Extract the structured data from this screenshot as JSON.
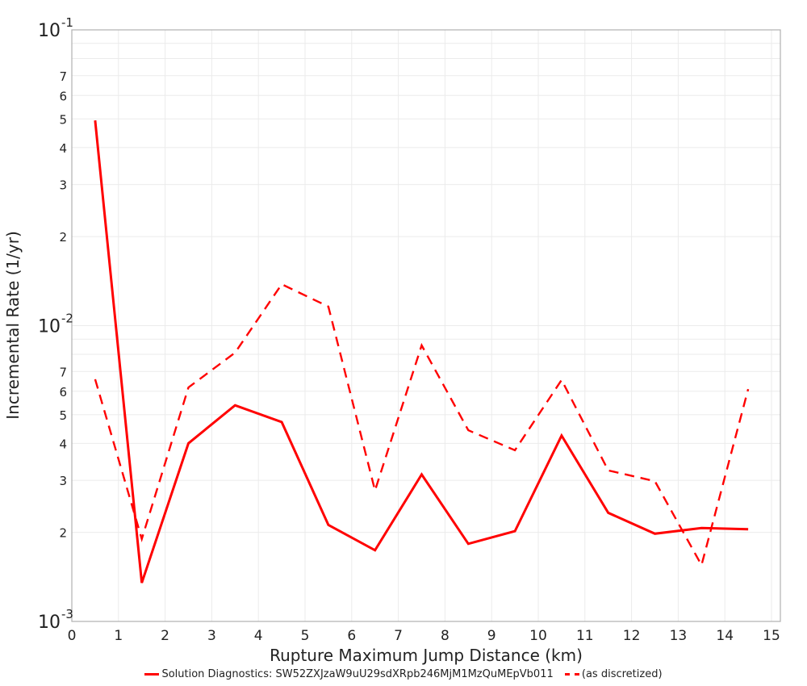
{
  "chart_data": {
    "type": "line",
    "title": "",
    "xlabel": "Rupture Maximum Jump Distance (km)",
    "ylabel": "Incremental Rate (1/yr)",
    "xlim": [
      0,
      15
    ],
    "ylim": [
      0.001,
      0.1
    ],
    "yscale": "log",
    "grid": true,
    "legend_position": "bottom",
    "x_ticks": [
      "0",
      "1",
      "2",
      "3",
      "4",
      "5",
      "6",
      "7",
      "8",
      "9",
      "10",
      "11",
      "12",
      "13",
      "14",
      "15"
    ],
    "y_major_ticks": [
      {
        "base": "10",
        "exp": "-1",
        "value": 0.1
      },
      {
        "base": "10",
        "exp": "-2",
        "value": 0.01
      },
      {
        "base": "10",
        "exp": "-3",
        "value": 0.001
      }
    ],
    "y_minor_labels": [
      "2",
      "3",
      "4",
      "5",
      "6",
      "7"
    ],
    "x": [
      0.5,
      1.5,
      2.5,
      3.5,
      4.5,
      5.5,
      6.5,
      7.5,
      8.5,
      9.5,
      10.5,
      11.5,
      12.5,
      13.5,
      14.5
    ],
    "series": [
      {
        "name": "Solution Diagnostics: SW52ZXJzaW9uU29sdXRpb246MjM1MzQuMEpVb011",
        "style": "solid",
        "color": "#ff0000",
        "values": [
          0.0494,
          0.00135,
          0.004,
          0.00538,
          0.00472,
          0.00212,
          0.00174,
          0.00314,
          0.00183,
          0.00202,
          0.00425,
          0.00233,
          0.00198,
          0.00207,
          0.00205
        ]
      },
      {
        "name": "(as discretized)",
        "style": "dashed",
        "color": "#ff0000",
        "values": [
          0.00659,
          0.0019,
          0.00618,
          0.0081,
          0.0138,
          0.0116,
          0.00277,
          0.00858,
          0.00443,
          0.00379,
          0.00655,
          0.00324,
          0.00298,
          0.00155,
          0.0061
        ]
      }
    ]
  },
  "legend": {
    "items": [
      {
        "label": "Solution Diagnostics: SW52ZXJzaW9uU29sdXRpb246MjM1MzQuMEpVb011",
        "style": "solid"
      },
      {
        "label": "(as discretized)",
        "style": "dashed"
      }
    ]
  }
}
